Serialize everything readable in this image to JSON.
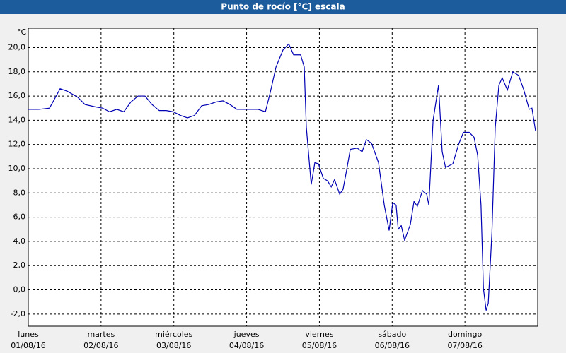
{
  "chart_data": {
    "type": "line",
    "title": "Punto de rocío [°C] escala",
    "y_label": "°C",
    "color": "#0000b4",
    "grid": true,
    "xlim": [
      0,
      168
    ],
    "xticks": [
      {
        "value": 0,
        "label": "lunes",
        "date": "01/08/16"
      },
      {
        "value": 24,
        "label": "martes",
        "date": "02/08/16"
      },
      {
        "value": 48,
        "label": "miércoles",
        "date": "03/08/16"
      },
      {
        "value": 72,
        "label": "jueves",
        "date": "04/08/16"
      },
      {
        "value": 96,
        "label": "viernes",
        "date": "05/08/16"
      },
      {
        "value": 120,
        "label": "sábado",
        "date": "06/08/16"
      },
      {
        "value": 144,
        "label": "domingo",
        "date": "07/08/16"
      }
    ],
    "ylim": [
      -3,
      21.6
    ],
    "yticks": [
      {
        "value": -2,
        "label": "-2,0"
      },
      {
        "value": 0,
        "label": "0,0"
      },
      {
        "value": 2,
        "label": "2,0"
      },
      {
        "value": 4,
        "label": "4,0"
      },
      {
        "value": 6,
        "label": "6,0"
      },
      {
        "value": 8,
        "label": "8,0"
      },
      {
        "value": 10,
        "label": "10,0"
      },
      {
        "value": 12,
        "label": "12,0"
      },
      {
        "value": 14,
        "label": "14,0"
      },
      {
        "value": 16,
        "label": "16,0"
      },
      {
        "value": 18,
        "label": "18,0"
      },
      {
        "value": 20,
        "label": "20,0"
      }
    ],
    "x": [
      0,
      3.5,
      7,
      10.5,
      12.8,
      16.3,
      18.7,
      22.2,
      24.5,
      26.8,
      29.2,
      31.5,
      33.8,
      36.2,
      38.5,
      40.8,
      43.2,
      45.5,
      47.8,
      50.2,
      52.5,
      54.8,
      57.2,
      59.5,
      61.8,
      64.2,
      66.5,
      68.8,
      71.2,
      75.8,
      78.2,
      79.8,
      81.7,
      84,
      85.9,
      87.5,
      89.8,
      91,
      91.7,
      93.3,
      94.5,
      95.7,
      97.3,
      98.7,
      99.9,
      101,
      102.7,
      103.8,
      105,
      106.2,
      108.5,
      110.1,
      111.5,
      113.2,
      115.5,
      117.4,
      119,
      120.2,
      121.3,
      122,
      123,
      124.1,
      126,
      127.2,
      128.3,
      130,
      131.4,
      132.1,
      133.5,
      135.3,
      136.5,
      137.6,
      140,
      141.9,
      143.5,
      145.4,
      147,
      148.2,
      149.3,
      150.1,
      151,
      151.7,
      152.9,
      154,
      155.2,
      156.3,
      158,
      159.8,
      161.7,
      163.3,
      165.2,
      166.1,
      167.3
    ],
    "values": [
      14.9,
      14.9,
      15.0,
      16.6,
      16.4,
      15.9,
      15.3,
      15.1,
      15.0,
      14.7,
      14.9,
      14.7,
      15.5,
      16.0,
      16.0,
      15.3,
      14.8,
      14.8,
      14.7,
      14.4,
      14.2,
      14.4,
      15.2,
      15.3,
      15.5,
      15.6,
      15.3,
      14.9,
      14.9,
      14.9,
      14.7,
      16.3,
      18.4,
      19.8,
      20.3,
      19.4,
      19.4,
      18.4,
      13.4,
      8.7,
      10.5,
      10.4,
      9.2,
      9.0,
      8.5,
      9.1,
      7.9,
      8.3,
      9.9,
      11.6,
      11.7,
      11.4,
      12.4,
      12.1,
      10.5,
      7.0,
      4.9,
      7.2,
      7.0,
      5.0,
      5.3,
      4.1,
      5.4,
      7.3,
      6.9,
      8.2,
      7.9,
      7.0,
      14.0,
      16.9,
      11.4,
      10.1,
      10.4,
      12.0,
      13.0,
      13.0,
      12.6,
      11.1,
      7.0,
      0.1,
      -1.7,
      -1.1,
      4.7,
      13.4,
      16.9,
      17.5,
      16.5,
      18.0,
      17.7,
      16.6,
      14.9,
      15.0,
      13.1
    ]
  }
}
